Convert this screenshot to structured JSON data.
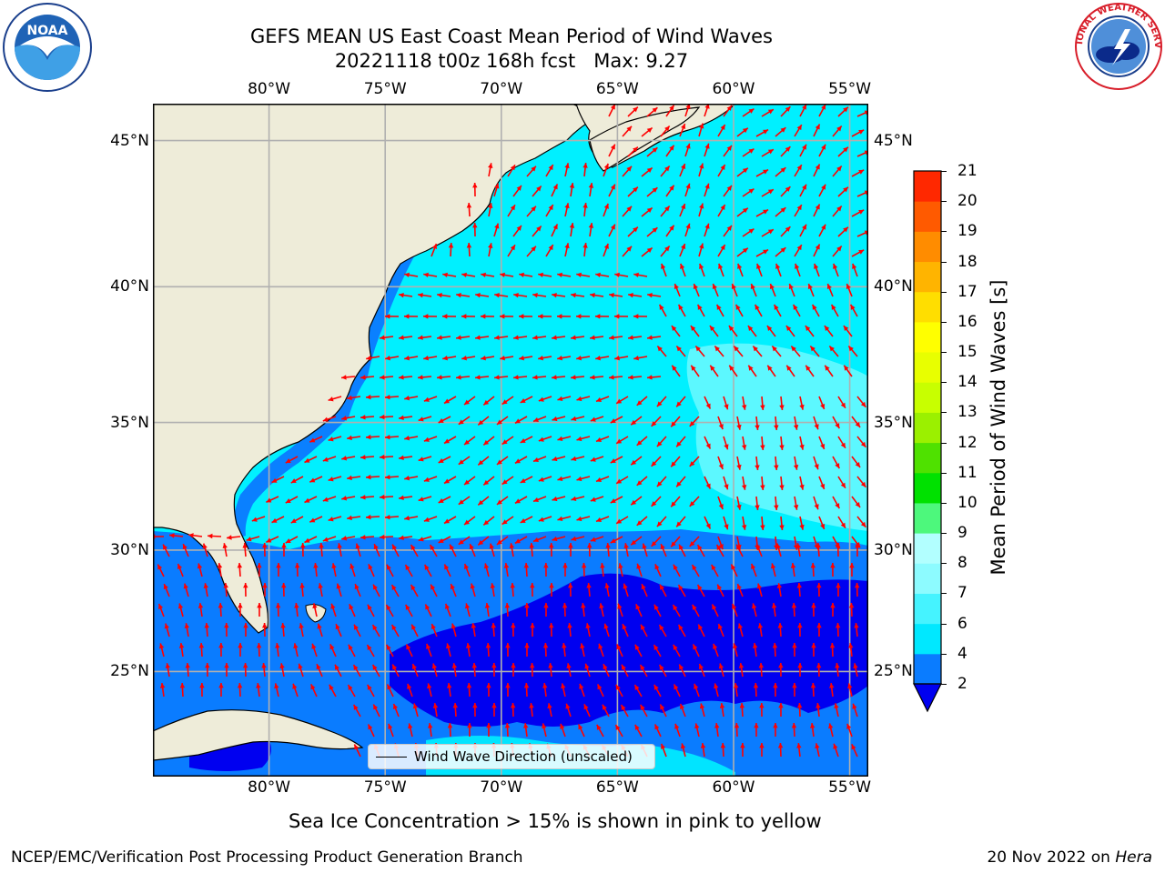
{
  "header": {
    "title_line1": "GEFS MEAN US East Coast Mean Period of Wind Waves",
    "title_line2": "20221118 t00z 168h fcst   Max: 9.27"
  },
  "logos": {
    "noaa_text": "NOAA",
    "noaa_ring_text": "NATIONAL OCEANIC AND ATMOSPHERIC ADMINISTRATION · U.S. DEPARTMENT OF COMMERCE",
    "nws_ring_text": "NATIONAL WEATHER SERVICE"
  },
  "map": {
    "lon_ticks": [
      "80°W",
      "75°W",
      "70°W",
      "65°W",
      "60°W",
      "55°W"
    ],
    "lat_ticks": [
      "45°N",
      "40°N",
      "35°N",
      "30°N",
      "25°N"
    ],
    "lon_range": [
      -85,
      -54.2
    ],
    "lat_range": [
      20.5,
      46.2
    ],
    "legend_label": "Wind Wave Direction (unscaled)",
    "arrow_color": "#ff0000",
    "land_color": "#eeecd9"
  },
  "colorbar": {
    "label": "Mean Period of Wind Waves [s]",
    "ticks": [
      "21",
      "20",
      "19",
      "18",
      "17",
      "16",
      "15",
      "14",
      "13",
      "12",
      "11",
      "10",
      "9",
      "8",
      "7",
      "6",
      "4",
      "2"
    ],
    "levels": [
      2,
      4,
      6,
      7,
      8,
      9,
      10,
      11,
      12,
      13,
      14,
      15,
      16,
      17,
      18,
      19,
      20,
      21
    ],
    "colors": [
      "#0a7cff",
      "#00e8ff",
      "#45f3ff",
      "#8dfbff",
      "#b2ffff",
      "#4df87c",
      "#00e100",
      "#4fe100",
      "#9bf000",
      "#c8ff00",
      "#e8ff00",
      "#ffff00",
      "#ffde00",
      "#ffb400",
      "#ff8c00",
      "#ff5a00",
      "#ff2800"
    ],
    "under_color": "#0000f0"
  },
  "footer": {
    "note": "Sea Ice Concentration > 15% is shown in pink to yellow",
    "credit": "NCEP/EMC/Verification Post Processing Product Generation Branch",
    "date_prefix": "20 Nov 2022 on ",
    "date_machine": "Hera"
  }
}
